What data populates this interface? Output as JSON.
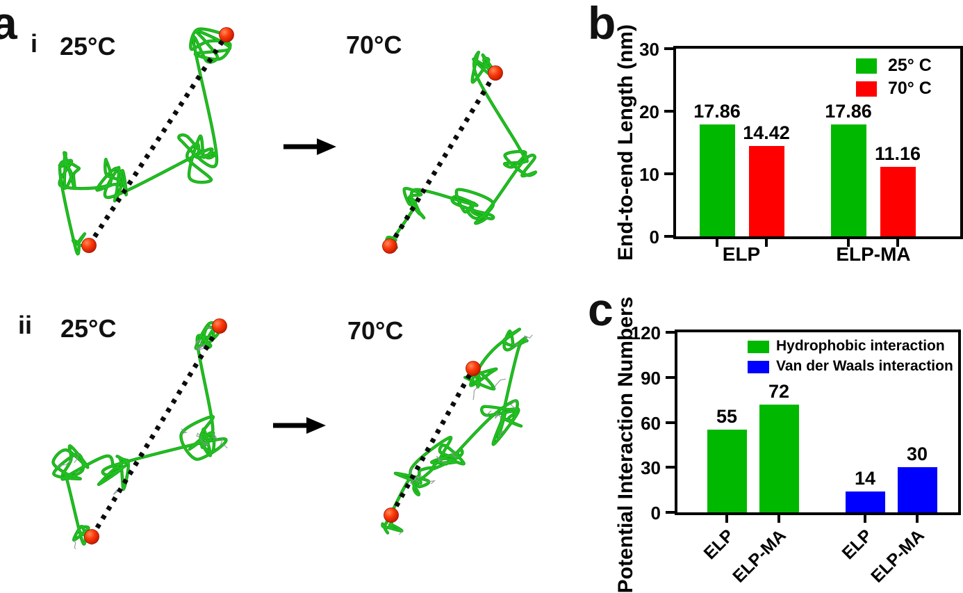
{
  "panels": {
    "a": {
      "label": "a",
      "rows": [
        {
          "index_label": "i",
          "states": [
            {
              "temp_label": "25°C"
            },
            {
              "temp_label": "70°C"
            }
          ]
        },
        {
          "index_label": "ii",
          "states": [
            {
              "temp_label": "25°C"
            },
            {
              "temp_label": "70°C"
            }
          ]
        }
      ]
    },
    "b": {
      "label": "b"
    },
    "c": {
      "label": "c"
    }
  },
  "chart_data": [
    {
      "type": "bar",
      "panel": "b",
      "title": "",
      "ylabel": "End-to-end Length (nm)",
      "ylim": [
        0,
        30
      ],
      "yticks": [
        0,
        10,
        20,
        30
      ],
      "grid": false,
      "legend_position": "top-right-inside",
      "groups": [
        "ELP",
        "ELP-MA"
      ],
      "series": [
        {
          "name": "25° C",
          "color": "#00b800",
          "values": [
            17.86,
            17.86
          ]
        },
        {
          "name": "70° C",
          "color": "#ff0000",
          "values": [
            14.42,
            11.16
          ]
        }
      ],
      "bar_labels": [
        "17.86",
        "14.42",
        "17.86",
        "11.16"
      ]
    },
    {
      "type": "bar",
      "panel": "c",
      "title": "",
      "ylabel": "Potential Interaction Numbers",
      "ylim": [
        0,
        120
      ],
      "yticks": [
        0,
        30,
        60,
        90,
        120
      ],
      "grid": false,
      "legend_position": "top-inside",
      "categories": [
        "ELP",
        "ELP-MA",
        "ELP",
        "ELP-MA"
      ],
      "series": [
        {
          "name": "Hydrophobic interaction",
          "color": "#00b800",
          "values": [
            55,
            72
          ]
        },
        {
          "name": "Van der Waals interaction",
          "color": "#0000ff",
          "values": [
            14,
            30
          ]
        }
      ],
      "bar_labels": [
        "55",
        "72",
        "14",
        "30"
      ]
    }
  ],
  "molecular_panel": {
    "ribbon_color": "#22c122",
    "terminal_sphere_color": "#f03008",
    "dashed_line_color": "#0c0c0c",
    "sidechain_color": "#8d9298"
  }
}
